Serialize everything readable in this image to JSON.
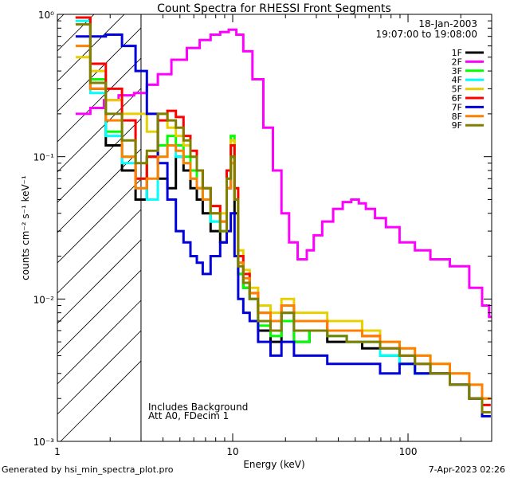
{
  "chart_data": {
    "type": "line",
    "title": "Count Spectra for RHESSI Front Segments",
    "xlabel": "Energy (keV)",
    "ylabel": "counts cm⁻² s⁻¹ keV⁻¹",
    "xscale": "log",
    "yscale": "log",
    "xlim": [
      1.0,
      300
    ],
    "ylim": [
      0.001,
      1.0
    ],
    "x_ticks": [
      {
        "value": 1,
        "label": "1"
      },
      {
        "value": 10,
        "label": "10"
      },
      {
        "value": 100,
        "label": "100"
      }
    ],
    "y_ticks": [
      {
        "value": 1.0,
        "label": "10⁰"
      },
      {
        "value": 0.1,
        "label": "10⁻¹"
      },
      {
        "value": 0.01,
        "label": "10⁻²"
      },
      {
        "value": 0.001,
        "label": "10⁻³"
      }
    ],
    "date": "18-Jan-2003",
    "time_range": "19:07:00 to 19:08:00",
    "annotations": [
      "Includes Background",
      "Att A0, FDecim 1"
    ],
    "excluded_region": [
      1.0,
      3.0
    ],
    "series": [
      {
        "name": "1F",
        "color": "#000000",
        "x": [
          1.4,
          1.7,
          2.1,
          2.6,
          3.0,
          3.5,
          4.0,
          4.5,
          5.0,
          5.5,
          6.0,
          6.5,
          7.0,
          8.0,
          9.0,
          9.5,
          10.0,
          10.5,
          11.0,
          12.0,
          13.0,
          15.0,
          18.0,
          20.0,
          25.0,
          30.0,
          40.0,
          50.0,
          60.0,
          80.0,
          100.0,
          120.0,
          150.0,
          200.0,
          250.0,
          280.0
        ],
        "y": [
          0.95,
          0.3,
          0.12,
          0.08,
          0.05,
          0.1,
          0.07,
          0.06,
          0.1,
          0.08,
          0.06,
          0.05,
          0.04,
          0.03,
          0.025,
          0.06,
          0.1,
          0.04,
          0.015,
          0.012,
          0.01,
          0.006,
          0.005,
          0.008,
          0.005,
          0.006,
          0.005,
          0.005,
          0.0045,
          0.004,
          0.0035,
          0.003,
          0.003,
          0.0025,
          0.002,
          0.0015
        ]
      },
      {
        "name": "2F",
        "color": "#ff00ff",
        "x": [
          1.4,
          1.7,
          2.0,
          2.5,
          3.0,
          3.5,
          4.0,
          5.0,
          6.0,
          7.0,
          8.0,
          9.0,
          10.0,
          11.0,
          12.0,
          14.0,
          16.0,
          18.0,
          20.0,
          22.0,
          25.0,
          28.0,
          30.0,
          35.0,
          40.0,
          45.0,
          50.0,
          55.0,
          60.0,
          70.0,
          80.0,
          100.0,
          120.0,
          150.0,
          200.0,
          250.0,
          280.0,
          300.0
        ],
        "y": [
          0.2,
          0.22,
          0.25,
          0.27,
          0.28,
          0.32,
          0.38,
          0.48,
          0.58,
          0.66,
          0.72,
          0.75,
          0.78,
          0.72,
          0.55,
          0.35,
          0.16,
          0.08,
          0.04,
          0.025,
          0.019,
          0.022,
          0.028,
          0.035,
          0.043,
          0.048,
          0.05,
          0.047,
          0.043,
          0.037,
          0.032,
          0.025,
          0.022,
          0.019,
          0.017,
          0.012,
          0.009,
          0.0075
        ]
      },
      {
        "name": "3F",
        "color": "#00ff00",
        "x": [
          1.4,
          1.7,
          2.1,
          2.6,
          3.0,
          3.5,
          4.0,
          4.5,
          5.0,
          5.5,
          6.0,
          6.5,
          7.0,
          8.0,
          9.0,
          9.5,
          10.0,
          10.5,
          11.0,
          12.0,
          13.0,
          15.0,
          18.0,
          20.0,
          25.0,
          30.0,
          40.0,
          50.0,
          60.0,
          80.0,
          100.0,
          120.0,
          150.0,
          200.0,
          250.0,
          280.0
        ],
        "y": [
          0.95,
          0.35,
          0.15,
          0.1,
          0.07,
          0.1,
          0.12,
          0.14,
          0.12,
          0.1,
          0.08,
          0.06,
          0.05,
          0.035,
          0.03,
          0.08,
          0.14,
          0.05,
          0.015,
          0.012,
          0.01,
          0.0065,
          0.0055,
          0.007,
          0.005,
          0.006,
          0.0055,
          0.005,
          0.005,
          0.004,
          0.0035,
          0.003,
          0.003,
          0.0025,
          0.002,
          0.0015
        ]
      },
      {
        "name": "4F",
        "color": "#00ffff",
        "x": [
          1.4,
          1.7,
          2.1,
          2.6,
          3.0,
          3.5,
          4.0,
          4.5,
          5.0,
          5.5,
          6.0,
          6.5,
          7.0,
          8.0,
          9.0,
          9.5,
          10.0,
          10.5,
          11.0,
          12.0,
          13.0,
          15.0,
          18.0,
          20.0,
          25.0,
          30.0,
          40.0,
          50.0,
          60.0,
          80.0,
          100.0,
          120.0,
          150.0,
          200.0,
          250.0,
          280.0
        ],
        "y": [
          0.9,
          0.28,
          0.14,
          0.09,
          0.06,
          0.05,
          0.1,
          0.12,
          0.1,
          0.09,
          0.07,
          0.06,
          0.05,
          0.035,
          0.03,
          0.07,
          0.12,
          0.05,
          0.018,
          0.013,
          0.01,
          0.007,
          0.006,
          0.008,
          0.006,
          0.006,
          0.0055,
          0.005,
          0.005,
          0.004,
          0.0035,
          0.003,
          0.003,
          0.0025,
          0.002,
          0.0015
        ]
      },
      {
        "name": "5F",
        "color": "#e8d000",
        "x": [
          1.4,
          1.7,
          2.1,
          2.6,
          3.0,
          3.5,
          4.0,
          4.5,
          5.0,
          5.5,
          6.0,
          6.5,
          7.0,
          8.0,
          9.0,
          9.5,
          10.0,
          10.5,
          11.0,
          12.0,
          13.0,
          15.0,
          18.0,
          20.0,
          25.0,
          30.0,
          40.0,
          50.0,
          60.0,
          80.0,
          100.0,
          120.0,
          150.0,
          200.0,
          250.0,
          280.0
        ],
        "y": [
          0.5,
          0.4,
          0.25,
          0.2,
          0.2,
          0.15,
          0.2,
          0.16,
          0.14,
          0.12,
          0.1,
          0.08,
          0.06,
          0.045,
          0.04,
          0.08,
          0.13,
          0.06,
          0.022,
          0.016,
          0.012,
          0.009,
          0.008,
          0.01,
          0.008,
          0.008,
          0.007,
          0.007,
          0.006,
          0.005,
          0.0045,
          0.004,
          0.0035,
          0.003,
          0.0025,
          0.002
        ]
      },
      {
        "name": "6F",
        "color": "#ff0000",
        "x": [
          1.4,
          1.7,
          2.1,
          2.6,
          3.0,
          3.5,
          4.0,
          4.5,
          5.0,
          5.5,
          6.0,
          6.5,
          7.0,
          8.0,
          9.0,
          9.5,
          10.0,
          10.5,
          11.0,
          12.0,
          13.0,
          15.0,
          18.0,
          20.0,
          25.0,
          30.0,
          40.0,
          50.0,
          60.0,
          80.0,
          100.0,
          120.0,
          150.0,
          200.0,
          250.0,
          280.0
        ],
        "y": [
          0.95,
          0.45,
          0.3,
          0.18,
          0.07,
          0.1,
          0.18,
          0.21,
          0.19,
          0.14,
          0.11,
          0.08,
          0.06,
          0.045,
          0.035,
          0.08,
          0.12,
          0.06,
          0.02,
          0.015,
          0.011,
          0.008,
          0.007,
          0.009,
          0.007,
          0.007,
          0.006,
          0.006,
          0.0055,
          0.0045,
          0.004,
          0.0035,
          0.003,
          0.0025,
          0.002,
          0.0018
        ]
      },
      {
        "name": "7F",
        "color": "#0000dd",
        "x": [
          1.4,
          1.7,
          2.1,
          2.6,
          3.0,
          3.5,
          4.0,
          4.5,
          5.0,
          5.5,
          6.0,
          6.5,
          7.0,
          8.0,
          9.0,
          9.5,
          10.0,
          10.5,
          11.0,
          12.0,
          13.0,
          15.0,
          18.0,
          20.0,
          25.0,
          30.0,
          40.0,
          50.0,
          60.0,
          80.0,
          100.0,
          120.0,
          150.0,
          200.0,
          250.0,
          280.0
        ],
        "y": [
          0.7,
          0.7,
          0.72,
          0.6,
          0.4,
          0.2,
          0.09,
          0.05,
          0.03,
          0.025,
          0.02,
          0.018,
          0.015,
          0.02,
          0.025,
          0.03,
          0.04,
          0.02,
          0.01,
          0.008,
          0.007,
          0.005,
          0.004,
          0.005,
          0.004,
          0.004,
          0.0035,
          0.0035,
          0.0035,
          0.003,
          0.0035,
          0.003,
          0.003,
          0.0025,
          0.002,
          0.0015
        ]
      },
      {
        "name": "8F",
        "color": "#ff8000",
        "x": [
          1.4,
          1.7,
          2.1,
          2.6,
          3.0,
          3.5,
          4.0,
          4.5,
          5.0,
          5.5,
          6.0,
          6.5,
          7.0,
          8.0,
          9.0,
          9.5,
          10.0,
          10.5,
          11.0,
          12.0,
          13.0,
          15.0,
          18.0,
          20.0,
          25.0,
          30.0,
          40.0,
          50.0,
          60.0,
          80.0,
          100.0,
          120.0,
          150.0,
          200.0,
          250.0,
          280.0
        ],
        "y": [
          0.6,
          0.3,
          0.18,
          0.1,
          0.06,
          0.07,
          0.1,
          0.12,
          0.11,
          0.09,
          0.07,
          0.06,
          0.05,
          0.04,
          0.035,
          0.06,
          0.09,
          0.05,
          0.018,
          0.014,
          0.011,
          0.008,
          0.007,
          0.009,
          0.007,
          0.007,
          0.006,
          0.006,
          0.0055,
          0.005,
          0.0045,
          0.004,
          0.0035,
          0.003,
          0.0025,
          0.002
        ]
      },
      {
        "name": "9F",
        "color": "#808000",
        "x": [
          1.4,
          1.7,
          2.1,
          2.6,
          3.0,
          3.5,
          4.0,
          4.5,
          5.0,
          5.5,
          6.0,
          6.5,
          7.0,
          8.0,
          9.0,
          9.5,
          10.0,
          10.5,
          11.0,
          12.0,
          13.0,
          15.0,
          18.0,
          20.0,
          25.0,
          30.0,
          40.0,
          50.0,
          60.0,
          80.0,
          100.0,
          120.0,
          150.0,
          200.0,
          250.0,
          280.0
        ],
        "y": [
          0.85,
          0.33,
          0.2,
          0.13,
          0.09,
          0.11,
          0.2,
          0.18,
          0.16,
          0.13,
          0.1,
          0.08,
          0.06,
          0.04,
          0.03,
          0.07,
          0.1,
          0.05,
          0.017,
          0.013,
          0.01,
          0.007,
          0.006,
          0.008,
          0.006,
          0.006,
          0.0055,
          0.005,
          0.005,
          0.0045,
          0.004,
          0.0035,
          0.003,
          0.0025,
          0.002,
          0.0016
        ]
      }
    ]
  },
  "footer": {
    "generated_by": "Generated by  hsi_min_spectra_plot.pro",
    "timestamp": "7-Apr-2023 02:26"
  }
}
